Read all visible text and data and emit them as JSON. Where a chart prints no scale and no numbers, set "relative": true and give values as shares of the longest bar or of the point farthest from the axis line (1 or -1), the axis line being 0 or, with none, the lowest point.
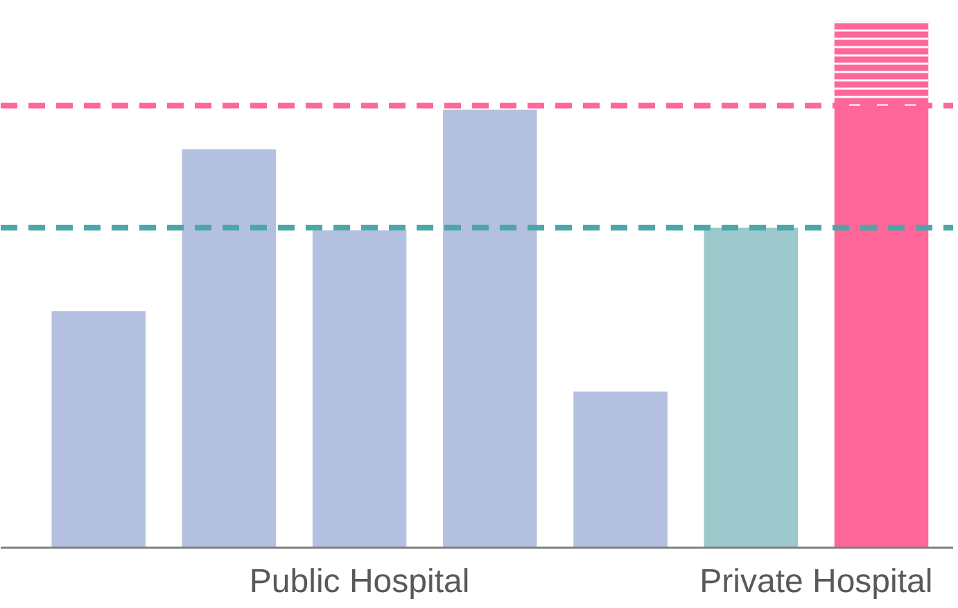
{
  "chart_data": {
    "type": "bar",
    "relative": true,
    "stacked": true,
    "categories": [
      null,
      null,
      null,
      null,
      null,
      null,
      null
    ],
    "series": [
      {
        "colors": [
          "#b4c0df",
          "#b4c0df",
          "#b4c0df",
          "#b4c0df",
          "#b4c0df",
          "#9dc8cc",
          "#ff6699"
        ],
        "values": [
          0.45,
          0.758,
          0.604,
          0.833,
          0.297,
          0.609,
          0.841
        ]
      },
      {
        "color": "#ff6699",
        "values": [
          null,
          null,
          null,
          null,
          null,
          null,
          0.159
        ]
      }
    ],
    "ref_lines": [
      {
        "axis": "y",
        "value": 0.841,
        "color": "#ff6699",
        "line_style": "dashed"
      },
      {
        "axis": "y",
        "value": 0.609,
        "color": "#4da6a8",
        "line_style": "dashed"
      }
    ],
    "annotations": [
      "Public Hospital",
      "Private Hospital"
    ]
  }
}
